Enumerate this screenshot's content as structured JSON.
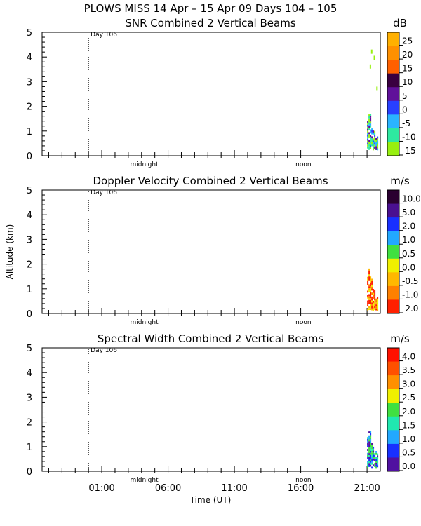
{
  "header": {
    "title": "PLOWS MISS  14 Apr – 15 Apr 09 Days 104 – 105"
  },
  "chart_data": [
    {
      "type": "heatmap",
      "title": "SNR Combined 2 Vertical Beams",
      "ylabel": "",
      "xlabel": "",
      "unit": "dB",
      "yticks": [
        "0",
        "1",
        "2",
        "3",
        "4",
        "5"
      ],
      "ylim": [
        0,
        5
      ],
      "xlim": [
        -3.5,
        22
      ],
      "marker": {
        "label": "Day 106",
        "x": 0
      },
      "inner_labels": [
        {
          "text": "midnight",
          "x": 4.2
        },
        {
          "text": "noon",
          "x": 16.2
        }
      ],
      "colorbar": {
        "labels": [
          "25",
          "20",
          "15",
          "10",
          "5",
          "0",
          "-5",
          "-10",
          "-15"
        ],
        "colors": [
          "#ffb000",
          "#ff9000",
          "#ff6000",
          "#3a0040",
          "#60109a",
          "#2840ff",
          "#2ab4ff",
          "#2ee8a0",
          "#98f010"
        ]
      },
      "data_summary": "Echo confined near x≈21:00–21:35, altitude 0.2–1.5 km with isolated returns up to ~4.3 km"
    },
    {
      "type": "heatmap",
      "title": "Doppler Velocity Combined 2 Vertical Beams",
      "ylabel": "Altitude (km)",
      "xlabel": "",
      "unit": "m/s",
      "yticks": [
        "0",
        "1",
        "2",
        "3",
        "4",
        "5"
      ],
      "ylim": [
        0,
        5
      ],
      "xlim": [
        -3.5,
        22
      ],
      "marker": {
        "label": "Day 106",
        "x": 0
      },
      "inner_labels": [
        {
          "text": "midnight",
          "x": 4.2
        },
        {
          "text": "noon",
          "x": 16.2
        }
      ],
      "colorbar": {
        "labels": [
          "10.0",
          "5.0",
          "2.0",
          "1.0",
          "0.5",
          "0.0",
          "-0.5",
          "-1.0",
          "-2.0"
        ],
        "colors": [
          "#2a0030",
          "#4a1090",
          "#1830ff",
          "#22a8ff",
          "#40e040",
          "#f0f000",
          "#ffb800",
          "#ff8000",
          "#ff2000"
        ]
      },
      "data_summary": "Echo near x≈21:00–21:35, altitude 0.1–1.5 km, velocities mostly -2.0 to 0.0 m/s"
    },
    {
      "type": "heatmap",
      "title": "Spectral Width Combined 2 Vertical Beams",
      "ylabel": "",
      "xlabel": "Time (UT)",
      "unit": "m/s",
      "yticks": [
        "0",
        "1",
        "2",
        "3",
        "4",
        "5"
      ],
      "ylim": [
        0,
        5
      ],
      "xlim": [
        -3.5,
        22
      ],
      "xticks": [
        "01:00",
        "06:00",
        "11:00",
        "16:00",
        "21:00"
      ],
      "marker": {
        "label": "Day 106",
        "x": 0
      },
      "inner_labels": [
        {
          "text": "midnight",
          "x": 4.2
        },
        {
          "text": "noon",
          "x": 16.2
        }
      ],
      "colorbar": {
        "labels": [
          "4.0",
          "3.5",
          "3.0",
          "2.5",
          "2.0",
          "1.5",
          "1.0",
          "0.5",
          "0.0"
        ],
        "colors": [
          "#ff1000",
          "#ff5000",
          "#ff9000",
          "#f0f000",
          "#40e040",
          "#20e8b0",
          "#22a8ff",
          "#1830ff",
          "#5010a0"
        ]
      },
      "data_summary": "Echo near x≈21:00–21:35, altitude 0.1–1.5 km, widths mostly 0.5–1.5 m/s"
    }
  ]
}
